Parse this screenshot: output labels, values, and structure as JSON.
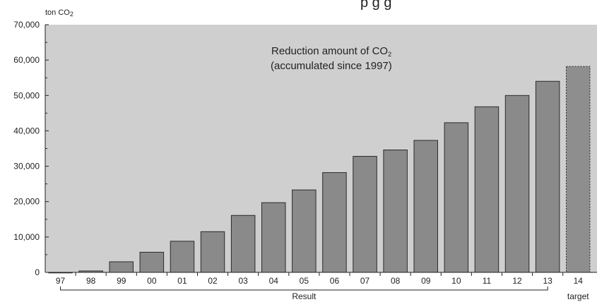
{
  "clipped_heading": "p        g         g",
  "chart_data": {
    "type": "bar",
    "unit": "ton CO",
    "unit_subscript": "2",
    "title_line1": "Reduction amount of CO",
    "title_line1_subscript": "2",
    "title_line2": "(accumulated since 1997)",
    "categories": [
      "97",
      "98",
      "99",
      "00",
      "01",
      "02",
      "03",
      "04",
      "05",
      "06",
      "07",
      "08",
      "09",
      "10",
      "11",
      "12",
      "13",
      "14"
    ],
    "values": [
      0,
      400,
      3000,
      5700,
      8800,
      11500,
      16100,
      19700,
      23300,
      28200,
      32800,
      34600,
      37300,
      42300,
      46800,
      50000,
      54000,
      58200
    ],
    "target_index": 17,
    "ylim": [
      0,
      70000
    ],
    "yticks": [
      0,
      10000,
      20000,
      30000,
      40000,
      50000,
      60000,
      70000
    ],
    "ytick_labels": [
      "0",
      "10,000",
      "20,000",
      "30,000",
      "40,000",
      "50,000",
      "60,000",
      "70,000"
    ],
    "bracket_label": "Result",
    "target_label": "target",
    "grid": false,
    "colors": {
      "plot_bg": "#cfcfcf",
      "bar_fill": "#8a8a8a",
      "bar_edge": "#2a2a2a",
      "target_fill": "#8e8e8e"
    }
  }
}
